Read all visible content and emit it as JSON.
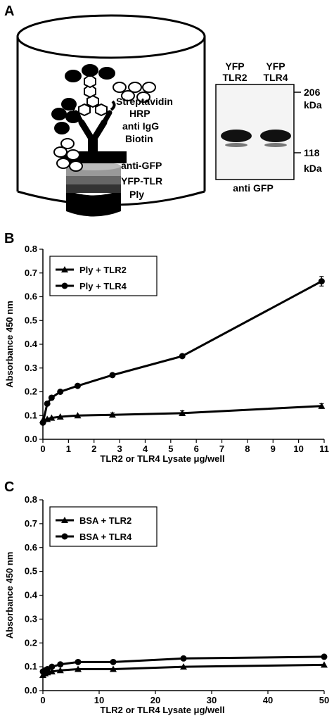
{
  "panels": {
    "a": {
      "letter": "A",
      "diagram_labels": {
        "streptavidin": "Streptavidin",
        "hrp": "HRP",
        "anti_igg": "anti IgG",
        "biotin": "Biotin",
        "anti_gfp": "anti-GFP",
        "yfp_tlr": "YFP-TLR",
        "ply": "Ply"
      },
      "blot": {
        "lane_labels": [
          [
            "YFP",
            "TLR2"
          ],
          [
            "YFP",
            "TLR4"
          ]
        ],
        "markers": [
          [
            "206",
            "kDa"
          ],
          [
            "118",
            "kDa"
          ]
        ],
        "caption": "anti GFP"
      }
    },
    "b": {
      "letter": "B"
    },
    "c": {
      "letter": "C"
    }
  },
  "chart_data": [
    {
      "panel": "B",
      "type": "line",
      "xlabel": "TLR2 or TLR4 Lysate μg/well",
      "ylabel": "Absorbance 450 nm",
      "xlim": [
        0,
        11
      ],
      "ylim": [
        0,
        0.8
      ],
      "xticks": [
        0,
        1,
        2,
        3,
        4,
        5,
        6,
        7,
        8,
        9,
        10,
        11
      ],
      "yticks": [
        0.0,
        0.1,
        0.2,
        0.3,
        0.4,
        0.5,
        0.6,
        0.7,
        0.8
      ],
      "ytick_labels": [
        "0.0",
        "0.1",
        "0.2",
        "0.3",
        "0.4",
        "0.5",
        "0.6",
        "0.7",
        "0.8"
      ],
      "legend_position": "top-left",
      "series": [
        {
          "name": "Ply + TLR2",
          "marker": "triangle",
          "x": [
            0,
            0.17,
            0.34,
            0.68,
            1.36,
            2.72,
            5.45,
            10.9
          ],
          "y": [
            0.08,
            0.085,
            0.09,
            0.095,
            0.1,
            0.103,
            0.11,
            0.14
          ],
          "err": [
            0,
            0,
            0,
            0,
            0,
            0.008,
            0.01,
            0.01
          ]
        },
        {
          "name": "Ply + TLR4",
          "marker": "circle",
          "x": [
            0,
            0.17,
            0.34,
            0.68,
            1.36,
            2.72,
            5.45,
            10.9
          ],
          "y": [
            0.07,
            0.15,
            0.175,
            0.2,
            0.225,
            0.27,
            0.35,
            0.665
          ],
          "err": [
            0,
            0,
            0,
            0,
            0,
            0,
            0,
            0.02
          ]
        }
      ]
    },
    {
      "panel": "C",
      "type": "line",
      "xlabel": "TLR2 or TLR4 Lysate μg/well",
      "ylabel": "Absorbance 450 nm",
      "xlim": [
        0,
        50
      ],
      "ylim": [
        0,
        0.8
      ],
      "xticks": [
        0,
        10,
        20,
        30,
        40,
        50
      ],
      "yticks": [
        0.0,
        0.1,
        0.2,
        0.3,
        0.4,
        0.5,
        0.6,
        0.7,
        0.8
      ],
      "ytick_labels": [
        "0.0",
        "0.1",
        "0.2",
        "0.3",
        "0.4",
        "0.5",
        "0.6",
        "0.7",
        "0.8"
      ],
      "legend_position": "top-left",
      "series": [
        {
          "name": "BSA + TLR2",
          "marker": "triangle",
          "x": [
            0,
            0.4,
            0.8,
            1.6,
            3.1,
            6.25,
            12.5,
            25,
            50
          ],
          "y": [
            0.065,
            0.072,
            0.076,
            0.08,
            0.085,
            0.09,
            0.09,
            0.1,
            0.108
          ],
          "err": [
            0,
            0,
            0,
            0,
            0,
            0,
            0,
            0,
            0
          ]
        },
        {
          "name": "BSA + TLR4",
          "marker": "circle",
          "x": [
            0,
            0.4,
            0.8,
            1.6,
            3.1,
            6.25,
            12.5,
            25,
            50
          ],
          "y": [
            0.08,
            0.085,
            0.09,
            0.1,
            0.11,
            0.12,
            0.12,
            0.135,
            0.142
          ],
          "err": [
            0,
            0,
            0,
            0,
            0,
            0,
            0,
            0,
            0
          ]
        }
      ]
    }
  ],
  "colors": {
    "ink": "#000000",
    "band": "#111111",
    "blot_bg": "#f4f4f4"
  }
}
